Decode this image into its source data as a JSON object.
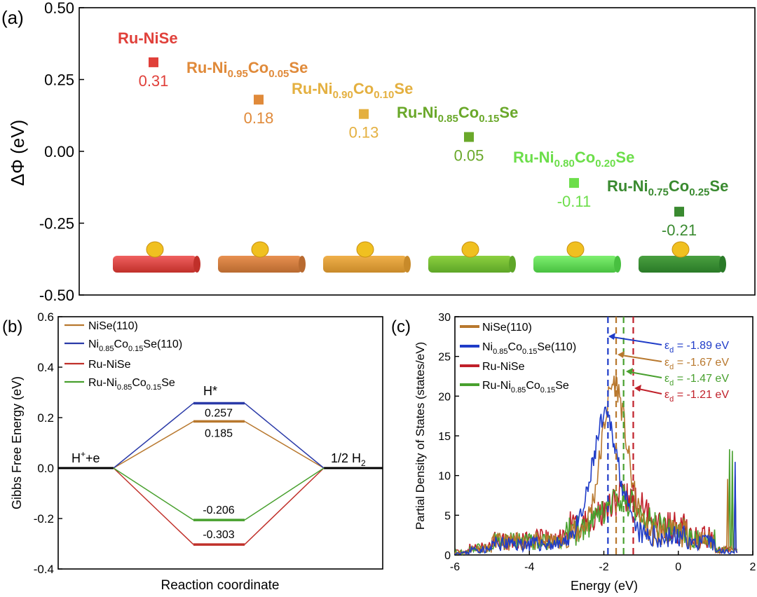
{
  "panel_labels": {
    "a": "(a)",
    "b": "(b)",
    "c": "(c)"
  },
  "chart_data": [
    {
      "panel": "a",
      "type": "scatter",
      "ylabel": "ΔΦ (eV)",
      "ylim": [
        -0.5,
        0.5
      ],
      "yticks": [
        "0.50",
        "0.25",
        "0.00",
        "-0.25",
        "-0.50"
      ],
      "points": [
        {
          "label": "Ru-NiSe",
          "value": 0.31,
          "value_text": "0.31",
          "color": "#e0403a"
        },
        {
          "label": "Ru-Ni0.95Co0.05Se",
          "value": 0.18,
          "value_text": "0.18",
          "color": "#e08a3a"
        },
        {
          "label": "Ru-Ni0.90Co0.10Se",
          "value": 0.13,
          "value_text": "0.13",
          "color": "#e4b040"
        },
        {
          "label": "Ru-Ni0.85Co0.15Se",
          "value": 0.05,
          "value_text": "0.05",
          "color": "#6aa82a"
        },
        {
          "label": "Ru-Ni0.80Co0.20Se",
          "value": -0.11,
          "value_text": "-0.11",
          "color": "#6cde4a"
        },
        {
          "label": "Ru-Ni0.75Co0.25Se",
          "value": -0.21,
          "value_text": "-0.21",
          "color": "#3a8a30"
        }
      ]
    },
    {
      "panel": "b",
      "type": "line",
      "xlabel": "Reaction coordinate",
      "ylabel": "Gibbs Free Energy (eV)",
      "ylim": [
        -0.4,
        0.6
      ],
      "yticks": [
        "0.6",
        "0.4",
        "0.2",
        "0.0",
        "-0.2",
        "-0.4"
      ],
      "states": [
        "H⁺+e",
        "H*",
        "1/2 H₂"
      ],
      "series": [
        {
          "name": "NiSe(110)",
          "value": 0.185,
          "value_text": "0.185",
          "color": "#b8782e"
        },
        {
          "name": "Ni0.85Co0.15Se(110)",
          "value": 0.257,
          "value_text": "0.257",
          "color": "#2a3aa8"
        },
        {
          "name": "Ru-NiSe",
          "value": -0.303,
          "value_text": "-0.303",
          "color": "#c0302a"
        },
        {
          "name": "Ru-Ni0.85Co0.15Se",
          "value": -0.206,
          "value_text": "-0.206",
          "color": "#48a02e"
        }
      ]
    },
    {
      "panel": "c",
      "type": "line",
      "xlabel": "Energy (eV)",
      "ylabel": "Partial Density of States (states/eV)",
      "xlim": [
        -6,
        2
      ],
      "ylim": [
        0,
        30
      ],
      "xticks": [
        "-6",
        "-4",
        "-2",
        "0",
        "2"
      ],
      "yticks": [
        "0",
        "5",
        "10",
        "15",
        "20",
        "25",
        "30"
      ],
      "series": [
        {
          "name": "NiSe(110)",
          "color": "#b8782e",
          "d_band_center": -1.67,
          "annotation": "= -1.67 eV"
        },
        {
          "name": "Ni0.85Co0.15Se(110)",
          "color": "#1f3cc8",
          "d_band_center": -1.89,
          "annotation": "= -1.89 eV"
        },
        {
          "name": "Ru-NiSe",
          "color": "#c0202a",
          "d_band_center": -1.21,
          "annotation": "= -1.21 eV"
        },
        {
          "name": "Ru-Ni0.85Co0.15Se",
          "color": "#48a02e",
          "d_band_center": -1.47,
          "annotation": "= -1.47 eV"
        }
      ]
    }
  ]
}
